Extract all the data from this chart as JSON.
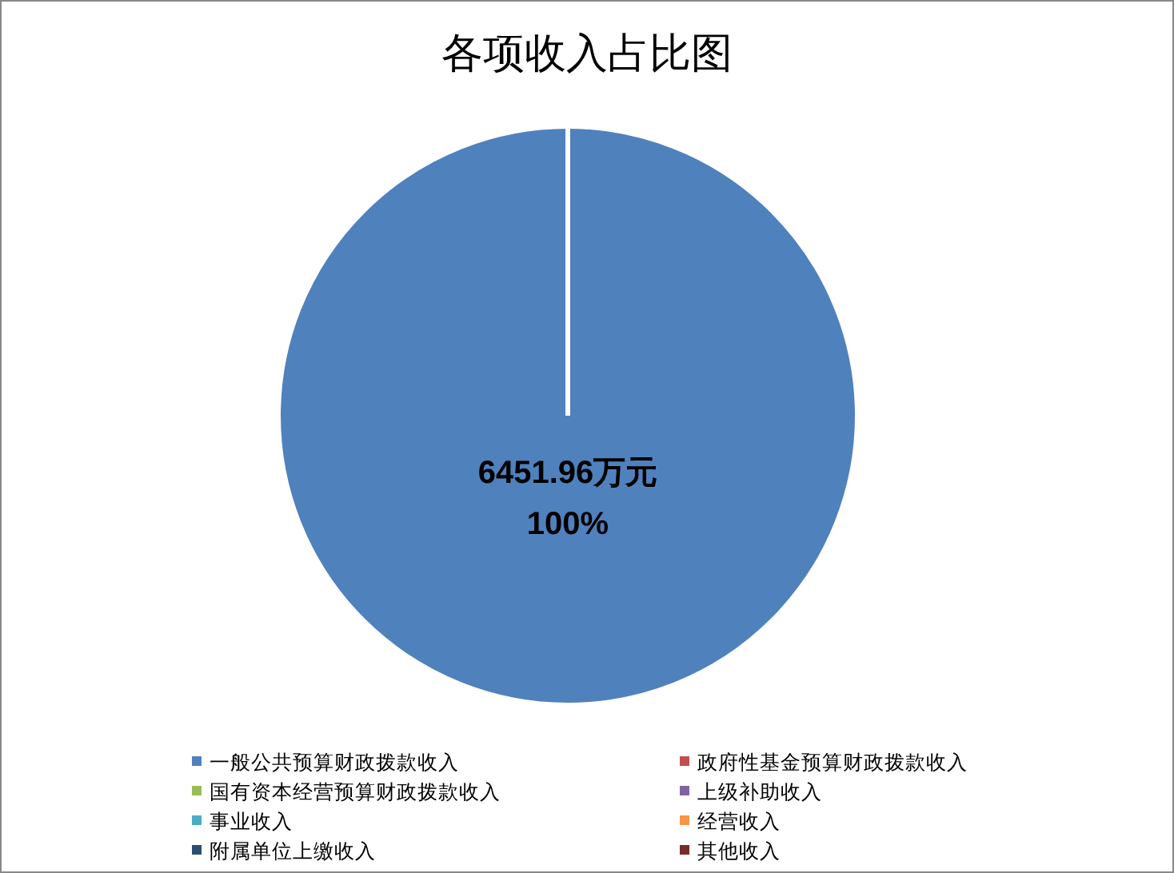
{
  "chart_data": {
    "type": "pie",
    "title": "各项收入占比图",
    "categories": [
      "一般公共预算财政拨款收入",
      "政府性基金预算财政拨款收入",
      "国有资本经营预算财政拨款收入",
      "上级补助收入",
      "事业收入",
      "经营收入",
      "附属单位上缴收入",
      "其他收入"
    ],
    "values": [
      6451.96,
      0,
      0,
      0,
      0,
      0,
      0,
      0
    ],
    "colors": [
      "#4f81bd",
      "#c0504d",
      "#9bbb59",
      "#8064a2",
      "#4bacc6",
      "#f79646",
      "#2c4d75",
      "#772c2a"
    ],
    "value_labels": [
      "6451.96万元\n100%",
      null,
      null,
      null,
      null,
      null,
      null,
      null
    ],
    "legend": "bottom"
  }
}
